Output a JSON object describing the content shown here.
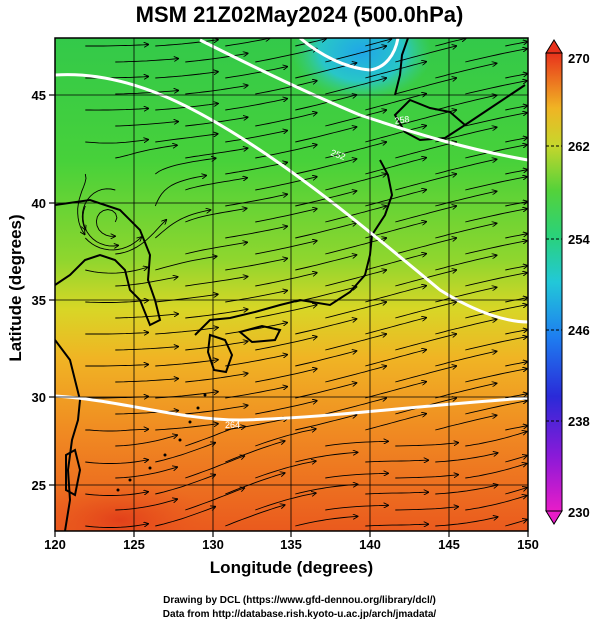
{
  "title": "MSM 21Z02May2024 (500.0hPa)",
  "x_axis": {
    "label": "Longitude (degrees)",
    "ticks": [
      "120",
      "125",
      "130",
      "135",
      "140",
      "145",
      "150"
    ]
  },
  "y_axis": {
    "label": "Latitude  (degrees)",
    "ticks": [
      "25",
      "30",
      "35",
      "40",
      "45"
    ]
  },
  "colorbar": {
    "ticks": [
      "270",
      "262",
      "254",
      "246",
      "238",
      "230"
    ],
    "min": 230,
    "max": 270
  },
  "credits": {
    "line1": "Drawing by DCL (https://www.gfd-dennou.org/library/dcl/)",
    "line2": "Data from http://database.rish.kyoto-u.ac.jp/arch/jmadata/"
  },
  "map": {
    "lon_range": [
      120,
      150
    ],
    "lat_range": [
      22.5,
      47.8
    ],
    "contour_labels": [
      "252",
      "258",
      "264"
    ]
  }
}
